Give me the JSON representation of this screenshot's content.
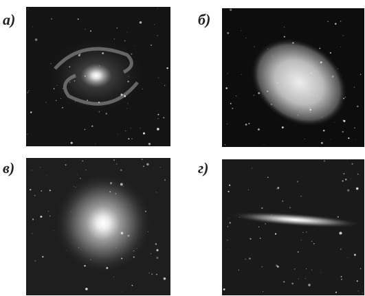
{
  "panels": [
    {
      "label": "а)"
    },
    {
      "label": "б)"
    },
    {
      "label": "в)"
    },
    {
      "label": "г)"
    }
  ]
}
